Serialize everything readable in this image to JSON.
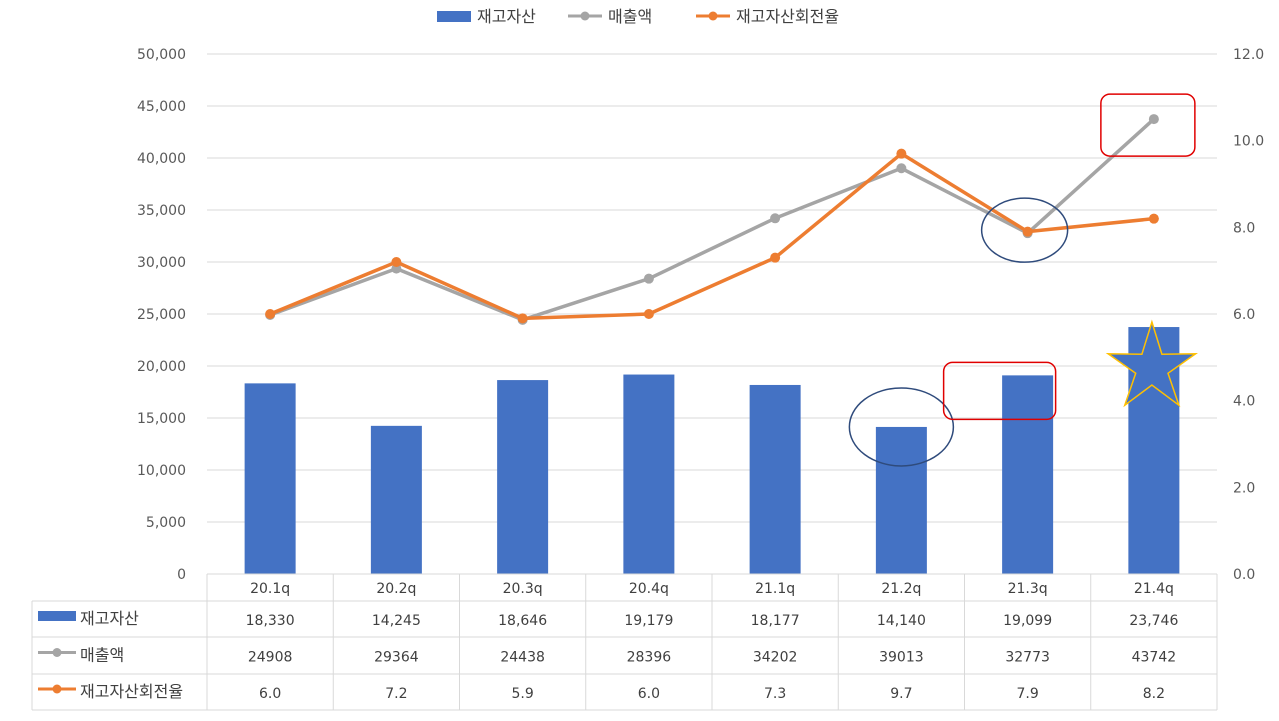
{
  "chart_data": {
    "type": "bar",
    "categories": [
      "20.1q",
      "20.2q",
      "20.3q",
      "20.4q",
      "21.1q",
      "21.2q",
      "21.3q",
      "21.4q"
    ],
    "series": [
      {
        "name": "재고자산",
        "type": "bar",
        "axis": "left",
        "color": "#4472C4",
        "values": [
          18330,
          14245,
          18646,
          19179,
          18177,
          14140,
          19099,
          23746
        ],
        "labels": [
          "18,330",
          "14,245",
          "18,646",
          "19,179",
          "18,177",
          "14,140",
          "19,099",
          "23,746"
        ]
      },
      {
        "name": "매출액",
        "type": "line",
        "axis": "left",
        "color": "#A5A5A5",
        "values": [
          24908,
          29364,
          24438,
          28396,
          34202,
          39013,
          32773,
          43742
        ],
        "labels": [
          "24908",
          "29364",
          "24438",
          "28396",
          "34202",
          "39013",
          "32773",
          "43742"
        ]
      },
      {
        "name": "재고자산회전율",
        "type": "line",
        "axis": "right",
        "color": "#ED7D31",
        "values": [
          6.0,
          7.2,
          5.9,
          6.0,
          7.3,
          9.7,
          7.9,
          8.2
        ],
        "labels": [
          "6.0",
          "7.2",
          "5.9",
          "6.0",
          "7.3",
          "9.7",
          "7.9",
          "8.2"
        ]
      }
    ],
    "y_left": {
      "ylim": [
        0,
        50000
      ],
      "ticks": [
        "0",
        "5,000",
        "10,000",
        "15,000",
        "20,000",
        "25,000",
        "30,000",
        "35,000",
        "40,000",
        "45,000",
        "50,000"
      ]
    },
    "y_right": {
      "ylim": [
        0,
        12
      ],
      "ticks": [
        "0.0",
        "2.0",
        "4.0",
        "6.0",
        "8.0",
        "10.0",
        "12.0"
      ]
    },
    "grid": true,
    "legend": "top-center",
    "data_table": true,
    "annotations": [
      {
        "shape": "ellipse",
        "color": "#2F4B7C",
        "category": "21.3q",
        "series": "매출액"
      },
      {
        "shape": "rounded-rect",
        "color": "#E00000",
        "category": "21.4q",
        "series": "매출액"
      },
      {
        "shape": "ellipse",
        "color": "#2F4B7C",
        "category": "21.2q",
        "series": "재고자산"
      },
      {
        "shape": "rounded-rect",
        "color": "#E00000",
        "category": "21.3q",
        "series": "재고자산"
      },
      {
        "shape": "star",
        "color": "#FFC000",
        "category": "21.4q",
        "series": "재고자산"
      }
    ]
  }
}
